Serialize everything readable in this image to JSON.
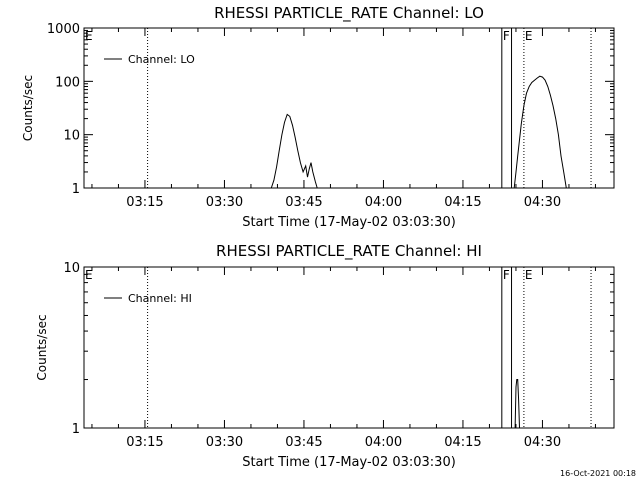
{
  "footer_stamp": "16-Oct-2021 00:18",
  "chart_data": [
    {
      "type": "line",
      "title": "RHESSI PARTICLE_RATE Channel: LO",
      "xlabel": "Start Time (17-May-02 03:03:30)",
      "ylabel": "Counts/sec",
      "yscale": "log",
      "xlim": [
        "03:03:30",
        "04:43:30"
      ],
      "ylim": [
        1,
        1000
      ],
      "x_ticks": [
        "03:15",
        "03:30",
        "03:45",
        "04:00",
        "04:15",
        "04:30"
      ],
      "y_ticks": [
        "1",
        "10",
        "100",
        "1000"
      ],
      "legend": {
        "entries": [
          "Channel: LO"
        ],
        "placement": "top-left"
      },
      "markers": [
        {
          "label": "E",
          "time": "03:03:30",
          "style": "dotted"
        },
        {
          "label": "",
          "time": "03:15:30",
          "style": "dotted"
        },
        {
          "label": "F",
          "time": "04:22:20",
          "style": "solid"
        },
        {
          "label": "",
          "time": "04:24:10",
          "style": "solid"
        },
        {
          "label": "E",
          "time": "04:26:30",
          "style": "dotted"
        },
        {
          "label": "",
          "time": "04:39:10",
          "style": "dotted"
        }
      ],
      "series": [
        {
          "name": "Channel: LO",
          "segments": [
            [
              [
                "03:38:50",
                1.0
              ],
              [
                "03:39:20",
                1.4
              ],
              [
                "03:39:50",
                2.5
              ],
              [
                "03:40:20",
                5.0
              ],
              [
                "03:40:50",
                10.0
              ],
              [
                "03:41:20",
                17.0
              ],
              [
                "03:41:50",
                24.0
              ],
              [
                "03:42:20",
                22.0
              ],
              [
                "03:42:50",
                15.0
              ],
              [
                "03:43:20",
                9.0
              ],
              [
                "03:43:50",
                5.0
              ],
              [
                "03:44:20",
                3.0
              ],
              [
                "03:44:50",
                2.0
              ],
              [
                "03:45:20",
                2.6
              ],
              [
                "03:45:40",
                1.6
              ],
              [
                "03:46:00",
                2.3
              ],
              [
                "03:46:20",
                3.0
              ],
              [
                "03:46:40",
                2.0
              ],
              [
                "03:47:10",
                1.3
              ],
              [
                "03:47:30",
                1.0
              ]
            ],
            [
              [
                "04:24:40",
                1.0
              ],
              [
                "04:25:00",
                2.0
              ],
              [
                "04:25:20",
                4.0
              ],
              [
                "04:25:40",
                8.0
              ],
              [
                "04:26:00",
                16.0
              ],
              [
                "04:26:30",
                35.0
              ],
              [
                "04:27:00",
                60.0
              ],
              [
                "04:27:30",
                80.0
              ],
              [
                "04:28:00",
                95.0
              ],
              [
                "04:28:30",
                105.0
              ],
              [
                "04:29:00",
                115.0
              ],
              [
                "04:29:30",
                125.0
              ],
              [
                "04:30:00",
                120.0
              ],
              [
                "04:30:30",
                105.0
              ],
              [
                "04:31:00",
                80.0
              ],
              [
                "04:31:30",
                55.0
              ],
              [
                "04:32:00",
                35.0
              ],
              [
                "04:32:30",
                20.0
              ],
              [
                "04:33:00",
                10.0
              ],
              [
                "04:33:30",
                4.0
              ],
              [
                "04:34:00",
                2.0
              ],
              [
                "04:34:30",
                1.0
              ]
            ]
          ]
        }
      ]
    },
    {
      "type": "line",
      "title": "RHESSI PARTICLE_RATE Channel: HI",
      "xlabel": "Start Time (17-May-02 03:03:30)",
      "ylabel": "Counts/sec",
      "yscale": "log",
      "xlim": [
        "03:03:30",
        "04:43:30"
      ],
      "ylim": [
        1,
        10
      ],
      "x_ticks": [
        "03:15",
        "03:30",
        "03:45",
        "04:00",
        "04:15",
        "04:30"
      ],
      "y_ticks": [
        "1",
        "10"
      ],
      "legend": {
        "entries": [
          "Channel: HI"
        ],
        "placement": "top-left"
      },
      "markers": [
        {
          "label": "E",
          "time": "03:03:30",
          "style": "dotted"
        },
        {
          "label": "",
          "time": "03:15:30",
          "style": "dotted"
        },
        {
          "label": "F",
          "time": "04:22:20",
          "style": "solid"
        },
        {
          "label": "",
          "time": "04:24:10",
          "style": "solid"
        },
        {
          "label": "E",
          "time": "04:26:30",
          "style": "dotted"
        },
        {
          "label": "",
          "time": "04:39:10",
          "style": "dotted"
        }
      ],
      "series": [
        {
          "name": "Channel: HI",
          "segments": [
            [
              [
                "04:24:50",
                1.0
              ],
              [
                "04:25:00",
                1.8
              ],
              [
                "04:25:10",
                2.0
              ],
              [
                "04:25:20",
                2.0
              ],
              [
                "04:25:30",
                1.5
              ],
              [
                "04:25:40",
                1.0
              ]
            ]
          ]
        }
      ]
    }
  ]
}
